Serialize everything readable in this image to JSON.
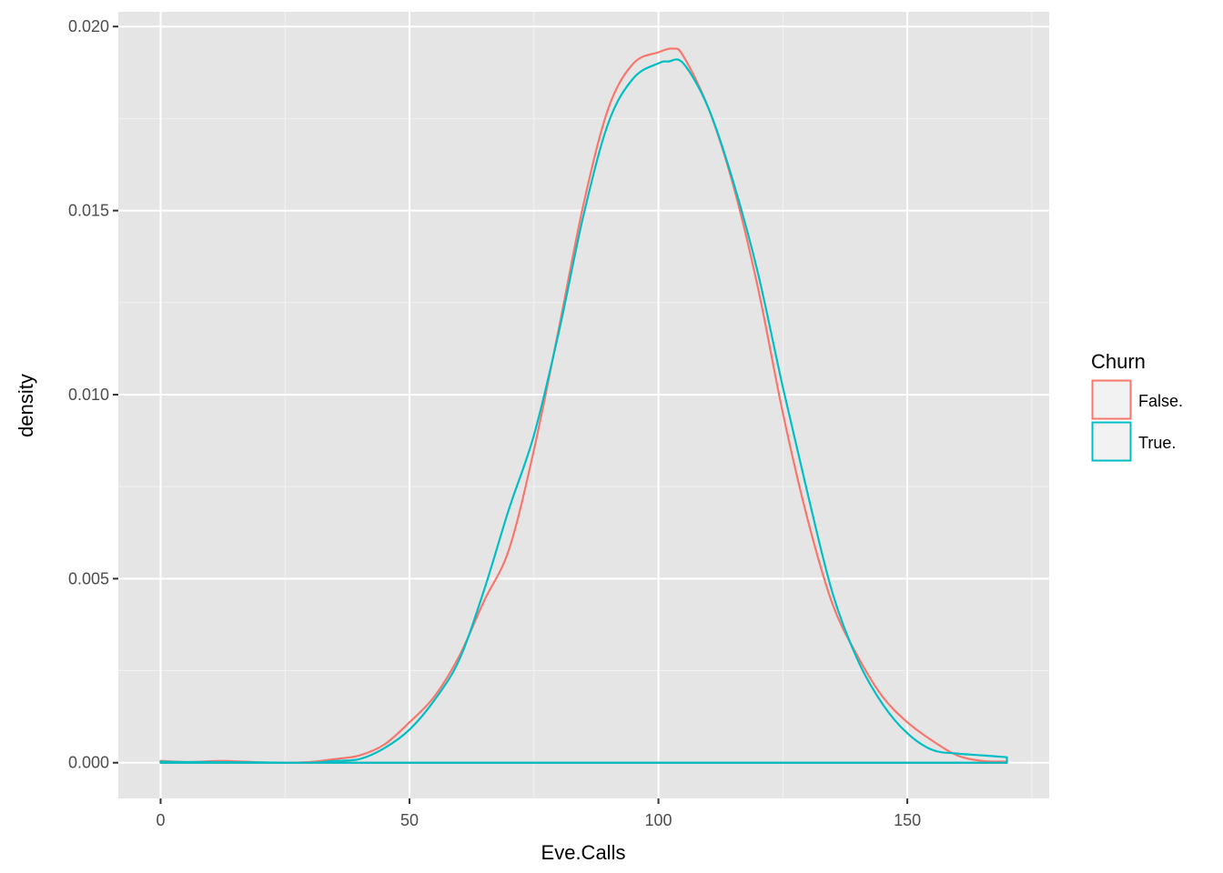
{
  "chart_data": {
    "type": "line",
    "subtype": "density",
    "title": "",
    "xlabel": "Eve.Calls",
    "ylabel": "density",
    "xlim": [
      -8.5,
      178.5
    ],
    "ylim": [
      -0.00097,
      0.0204
    ],
    "x_ticks": [
      0,
      50,
      100,
      150
    ],
    "x_tick_labels": [
      "0",
      "50",
      "100",
      "150"
    ],
    "x_minor_ticks": [
      25,
      75,
      125,
      175
    ],
    "y_ticks": [
      0.0,
      0.005,
      0.01,
      0.015,
      0.02
    ],
    "y_tick_labels": [
      "0.000",
      "0.005",
      "0.010",
      "0.015",
      "0.020"
    ],
    "y_minor_ticks": [
      0.0025,
      0.0075,
      0.0125,
      0.0175
    ],
    "grid": true,
    "panel_background": "#e5e5e5",
    "grid_color": "#ffffff",
    "legend": {
      "title": "Churn",
      "position": "right",
      "entries": [
        {
          "label": "False.",
          "color": "#f8766d"
        },
        {
          "label": "True.",
          "color": "#00bfc4"
        }
      ]
    },
    "series": [
      {
        "name": "False.",
        "color": "#f8766d",
        "closed_to_baseline": true,
        "points": [
          [
            0,
            5e-05
          ],
          [
            5,
            2e-05
          ],
          [
            10,
            4e-05
          ],
          [
            13,
            5e-05
          ],
          [
            20,
            1e-05
          ],
          [
            25,
            0.0
          ],
          [
            30,
            2e-05
          ],
          [
            35,
            0.0001
          ],
          [
            40,
            0.0002
          ],
          [
            45,
            0.0005
          ],
          [
            50,
            0.0011
          ],
          [
            55,
            0.0018
          ],
          [
            60,
            0.0029
          ],
          [
            65,
            0.0044
          ],
          [
            70,
            0.0058
          ],
          [
            75,
            0.0085
          ],
          [
            80,
            0.0118
          ],
          [
            85,
            0.0152
          ],
          [
            90,
            0.0178
          ],
          [
            95,
            0.019
          ],
          [
            100,
            0.0193
          ],
          [
            103,
            0.0194
          ],
          [
            105,
            0.0192
          ],
          [
            110,
            0.0178
          ],
          [
            115,
            0.0157
          ],
          [
            120,
            0.0129
          ],
          [
            125,
            0.0095
          ],
          [
            130,
            0.0066
          ],
          [
            135,
            0.0043
          ],
          [
            140,
            0.0029
          ],
          [
            145,
            0.0018
          ],
          [
            150,
            0.0011
          ],
          [
            155,
            0.0006
          ],
          [
            160,
            0.0002
          ],
          [
            165,
            5e-05
          ],
          [
            170,
            3e-05
          ]
        ]
      },
      {
        "name": "True.",
        "color": "#00bfc4",
        "closed_to_baseline": true,
        "points": [
          [
            0,
            3e-05
          ],
          [
            5,
            2e-05
          ],
          [
            10,
            2e-05
          ],
          [
            20,
            1e-05
          ],
          [
            30,
            0.0
          ],
          [
            35,
            5e-05
          ],
          [
            40,
            0.0001
          ],
          [
            45,
            0.0004
          ],
          [
            50,
            0.0009
          ],
          [
            55,
            0.0017
          ],
          [
            60,
            0.0028
          ],
          [
            65,
            0.0047
          ],
          [
            70,
            0.0069
          ],
          [
            75,
            0.0089
          ],
          [
            80,
            0.0117
          ],
          [
            85,
            0.0149
          ],
          [
            90,
            0.0174
          ],
          [
            95,
            0.0186
          ],
          [
            100,
            0.019
          ],
          [
            102,
            0.01905
          ],
          [
            105,
            0.019
          ],
          [
            110,
            0.0178
          ],
          [
            115,
            0.0158
          ],
          [
            120,
            0.0133
          ],
          [
            125,
            0.0102
          ],
          [
            130,
            0.0073
          ],
          [
            135,
            0.0046
          ],
          [
            140,
            0.0028
          ],
          [
            145,
            0.0016
          ],
          [
            150,
            0.0008
          ],
          [
            155,
            0.00035
          ],
          [
            160,
            0.00025
          ],
          [
            165,
            0.0002
          ],
          [
            170,
            0.00015
          ]
        ]
      }
    ]
  }
}
